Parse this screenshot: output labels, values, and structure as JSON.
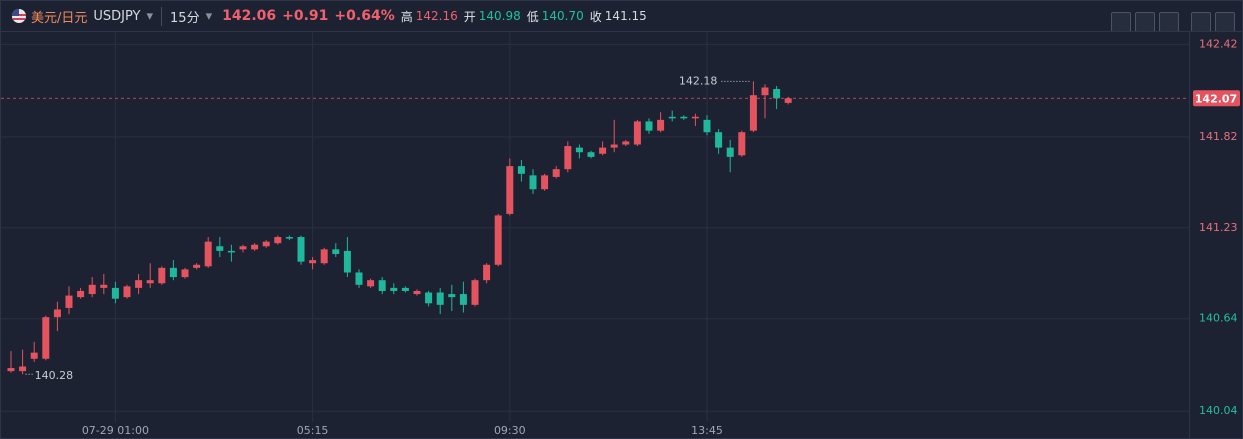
{
  "header": {
    "name": "美元/日元",
    "symbol": "USDJPY",
    "interval": "15分",
    "price": "142.06",
    "change": "+0.91",
    "change_pct": "+0.64%",
    "high_label": "高",
    "high": "142.16",
    "open_label": "开",
    "open": "140.98",
    "low_label": "低",
    "low": "140.70",
    "close_label": "收",
    "close": "141.15"
  },
  "chart_data": {
    "type": "candlestick",
    "categories": [
      null,
      null,
      null,
      null,
      null,
      null,
      null,
      null,
      null,
      "07-29 01:00",
      null,
      null,
      null,
      null,
      null,
      null,
      null,
      null,
      null,
      null,
      null,
      null,
      null,
      null,
      null,
      null,
      "05:15",
      null,
      null,
      null,
      null,
      null,
      null,
      null,
      null,
      null,
      null,
      null,
      null,
      null,
      null,
      null,
      null,
      "09:30",
      null,
      null,
      null,
      null,
      null,
      null,
      null,
      null,
      null,
      null,
      null,
      null,
      null,
      null,
      null,
      null,
      "13:45",
      null,
      null,
      null,
      null,
      null,
      null,
      null
    ],
    "open": [
      140.3,
      140.3,
      140.38,
      140.38,
      140.65,
      140.71,
      140.78,
      140.8,
      140.84,
      140.84,
      140.78,
      140.84,
      140.87,
      140.87,
      140.97,
      140.91,
      140.97,
      140.98,
      141.11,
      141.08,
      141.09,
      141.09,
      141.11,
      141.13,
      141.17,
      141.17,
      141.0,
      141.0,
      141.09,
      141.08,
      140.94,
      140.85,
      140.89,
      140.84,
      140.84,
      140.8,
      140.81,
      140.81,
      140.8,
      140.8,
      140.73,
      140.89,
      140.99,
      141.32,
      141.63,
      141.57,
      141.48,
      141.56,
      141.61,
      141.75,
      141.72,
      141.71,
      141.75,
      141.77,
      141.77,
      141.92,
      141.86,
      141.95,
      141.95,
      141.94,
      141.93,
      141.85,
      141.75,
      141.7,
      141.86,
      142.09,
      142.13,
      142.04
    ],
    "high": [
      140.43,
      140.44,
      140.49,
      140.66,
      140.75,
      140.85,
      140.84,
      140.91,
      140.93,
      140.88,
      140.86,
      140.93,
      141.0,
      140.98,
      141.02,
      140.97,
      141.0,
      141.17,
      141.17,
      141.12,
      141.12,
      141.13,
      141.15,
      141.18,
      141.18,
      141.18,
      141.04,
      141.1,
      141.13,
      141.17,
      140.96,
      140.9,
      140.91,
      140.87,
      140.85,
      140.83,
      140.82,
      140.84,
      140.86,
      140.88,
      140.9,
      141.0,
      141.32,
      141.68,
      141.67,
      141.61,
      141.58,
      141.63,
      141.79,
      141.77,
      141.73,
      141.79,
      141.93,
      141.8,
      141.93,
      141.94,
      141.98,
      141.99,
      141.96,
      141.97,
      141.96,
      141.87,
      141.8,
      141.86,
      142.18,
      142.16,
      142.15,
      142.08
    ],
    "low": [
      140.29,
      140.28,
      140.36,
      140.37,
      140.56,
      140.67,
      140.77,
      140.78,
      140.8,
      140.74,
      140.77,
      140.8,
      140.84,
      140.86,
      140.89,
      140.9,
      140.96,
      140.97,
      141.04,
      141.01,
      141.07,
      141.08,
      141.1,
      141.12,
      141.15,
      140.99,
      140.96,
      140.99,
      141.04,
      140.91,
      140.84,
      140.84,
      140.8,
      140.8,
      140.81,
      140.79,
      140.72,
      140.67,
      140.69,
      140.68,
      140.72,
      140.87,
      140.98,
      141.31,
      141.53,
      141.45,
      141.47,
      141.55,
      141.59,
      141.68,
      141.68,
      141.7,
      141.72,
      141.76,
      141.76,
      141.84,
      141.85,
      141.92,
      141.93,
      141.89,
      141.83,
      141.71,
      141.59,
      141.69,
      141.85,
      141.94,
      142.0,
      142.03
    ],
    "close": [
      140.32,
      140.33,
      140.42,
      140.65,
      140.7,
      140.79,
      140.82,
      140.86,
      140.86,
      140.77,
      140.85,
      140.89,
      140.89,
      140.97,
      140.91,
      140.96,
      140.99,
      141.14,
      141.08,
      141.07,
      141.11,
      141.12,
      141.14,
      141.17,
      141.16,
      141.01,
      141.02,
      141.09,
      141.06,
      140.94,
      140.86,
      140.89,
      140.82,
      140.82,
      140.82,
      140.82,
      140.74,
      140.73,
      140.78,
      140.73,
      140.89,
      140.99,
      141.31,
      141.63,
      141.58,
      141.48,
      141.57,
      141.61,
      141.76,
      141.72,
      141.69,
      141.75,
      141.77,
      141.79,
      141.92,
      141.86,
      141.93,
      141.94,
      141.94,
      141.95,
      141.85,
      141.75,
      141.69,
      141.85,
      142.09,
      142.14,
      142.07,
      142.07
    ],
    "up_color": "#e5535f",
    "down_color": "#1fb89c",
    "ylim": [
      139.97,
      142.5
    ],
    "yticks": [
      140.04,
      140.64,
      141.23,
      141.82,
      142.42
    ],
    "last_price": 142.07,
    "grid": true
  }
}
